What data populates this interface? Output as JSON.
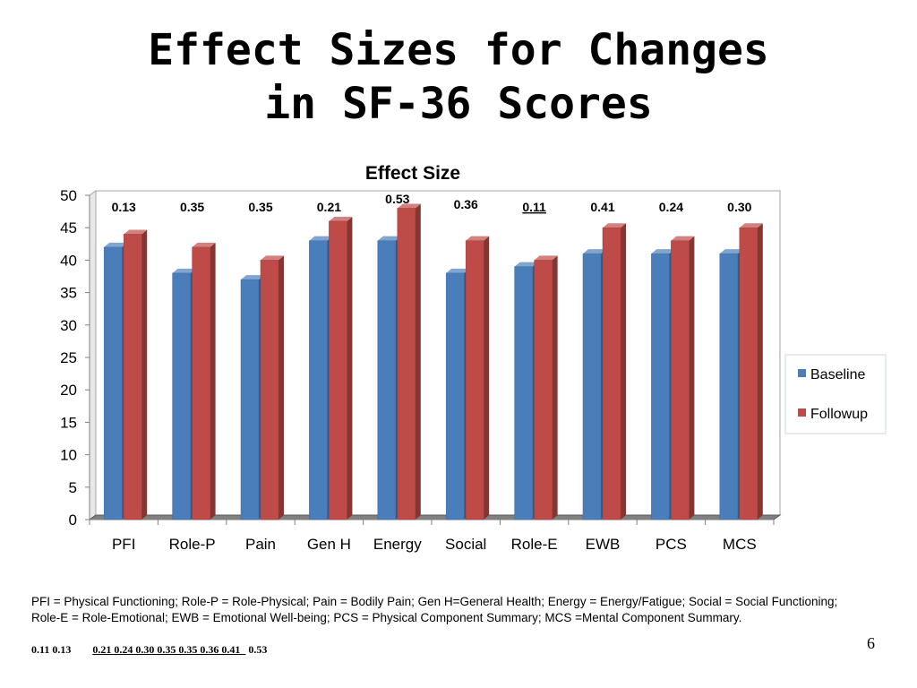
{
  "slide": {
    "title_line1": "Effect Sizes for Changes",
    "title_line2": "in SF-36 Scores",
    "footnote": "PFI = Physical Functioning; Role-P = Role-Physical; Pain = Bodily Pain; Gen H=General Health; Energy = Energy/Fatigue; Social = Social Functioning; Role-E = Role-Emotional; EWB = Emotional Well-being; PCS = Physical Component Summary; MCS =Mental Component Summary.",
    "effect_line_a": "0.11 0.13",
    "effect_line_b": "0.21 0.24 0.30 0.35 0.35 0.36 0.41",
    "effect_line_c": "0.53",
    "page_number": "6"
  },
  "chart_data": {
    "type": "bar",
    "title": "Effect Size",
    "categories": [
      "PFI",
      "Role-P",
      "Pain",
      "Gen H",
      "Energy",
      "Social",
      "Role-E",
      "EWB",
      "PCS",
      "MCS"
    ],
    "series": [
      {
        "name": "Baseline",
        "color": "#4a7ebb",
        "values": [
          42,
          38,
          37,
          43,
          43,
          38,
          39,
          41,
          41,
          41
        ]
      },
      {
        "name": "Followup",
        "color": "#be4b48",
        "values": [
          44,
          42,
          40,
          46,
          48,
          43,
          40,
          45,
          43,
          45
        ]
      }
    ],
    "effect_sizes": [
      "0.13",
      "0.35",
      "0.35",
      "0.21",
      "0.53",
      "0.36",
      "0.11",
      "0.41",
      "0.24",
      "0.30"
    ],
    "ylim": [
      0,
      50
    ],
    "yticks": [
      0,
      5,
      10,
      15,
      20,
      25,
      30,
      35,
      40,
      45,
      50
    ],
    "grid": false,
    "legend": "right"
  }
}
